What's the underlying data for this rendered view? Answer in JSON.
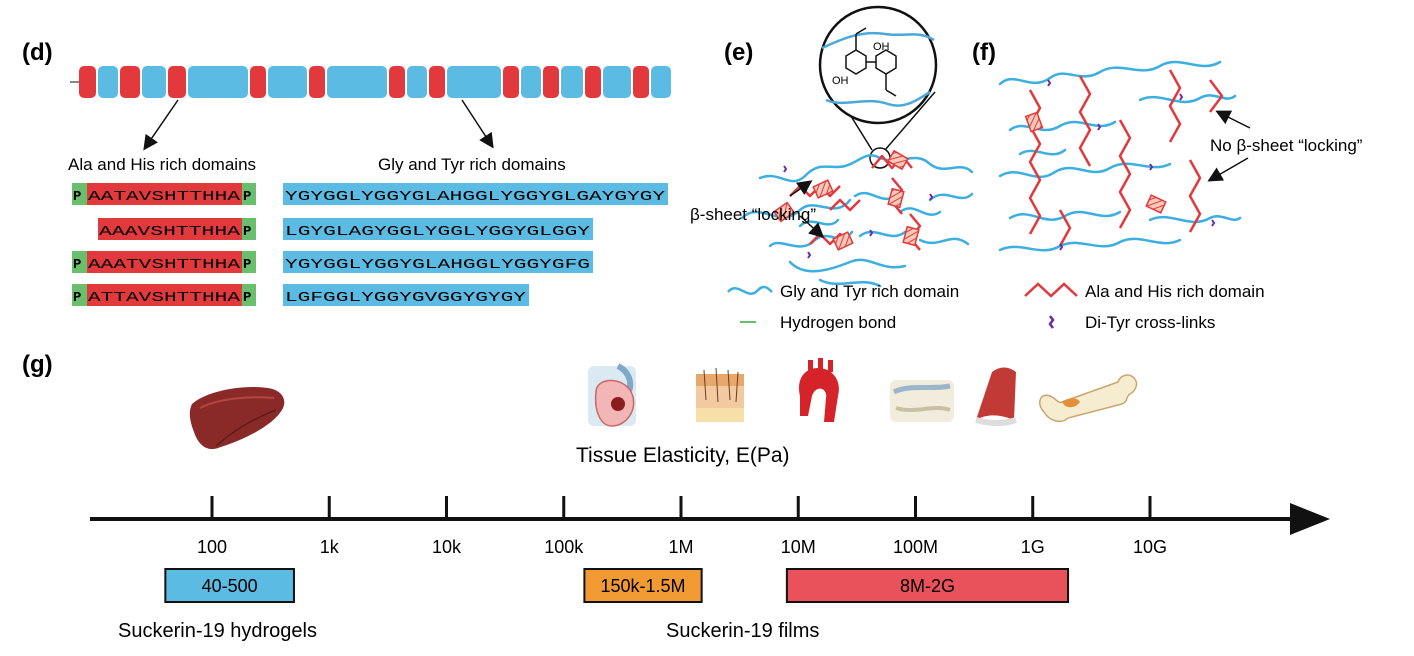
{
  "panels": {
    "d": "(d)",
    "e": "(e)",
    "f": "(f)",
    "g": "(g)"
  },
  "domains": {
    "ala_label": "Ala and His rich domains",
    "gly_label": "Gly and Tyr rich domains"
  },
  "sequences": {
    "ala": [
      {
        "pre": "P",
        "core": "AATAVSHTTHHA",
        "post": "P"
      },
      {
        "pre": "",
        "core": "AAAVSHTTHHA",
        "post": "P"
      },
      {
        "pre": "P",
        "core": "AAATVSHTTHHA",
        "post": "P"
      },
      {
        "pre": "P",
        "core": "ATTAVSHTTHHA",
        "post": "P"
      }
    ],
    "gly": [
      "YGYGGLYGGYGLAHGGLYGGYGLGAYGYGY",
      "LGYGLAGYGGLYGGLYGGYGLGGY",
      "YGYGGLYGGYGLAHGGLYGGYGFG",
      "LGFGGLYGGYGVGGYGYGY"
    ]
  },
  "network": {
    "locking_label": "β-sheet “locking”",
    "no_locking_label": "No β-sheet “locking”",
    "chem_oh_top": "OH",
    "chem_oh_bottom": "OH"
  },
  "legend": {
    "gly": "Gly and Tyr rich domain",
    "ala": "Ala and His rich domain",
    "hbond": "Hydrogen bond",
    "ditype": "Di-Tyr cross-links"
  },
  "colors": {
    "blue": "#5bbbe3",
    "red": "#e2393c",
    "green": "#69bf6d",
    "orange": "#f19a33",
    "rose": "#e9525b",
    "purple": "#6a2ca0"
  },
  "scale": {
    "title": "Tissue Elasticity, E(Pa)",
    "ticks": [
      "100",
      "1k",
      "10k",
      "100k",
      "1M",
      "10M",
      "100M",
      "1G",
      "10G"
    ],
    "tick_pa": [
      100,
      1000,
      10000,
      100000,
      1000000,
      10000000,
      100000000,
      1000000000,
      10000000000
    ],
    "ranges": [
      {
        "label": "40-500",
        "min": 40,
        "max": 500,
        "color": "#5bbbe3"
      },
      {
        "label": "150k-1.5M",
        "min": 150000,
        "max": 1500000,
        "color": "#f19a33"
      },
      {
        "label": "8M-2G",
        "min": 8000000,
        "max": 2000000000,
        "color": "#e9525b"
      }
    ],
    "caption_hydrogels": "Suckerin-19 hydrogels",
    "caption_films": "Suckerin-19 films"
  },
  "tissues": [
    "liver-icon",
    "lung-icon",
    "skin-icon",
    "aorta-icon",
    "cartilage-icon",
    "muscle-icon",
    "bone-icon"
  ]
}
